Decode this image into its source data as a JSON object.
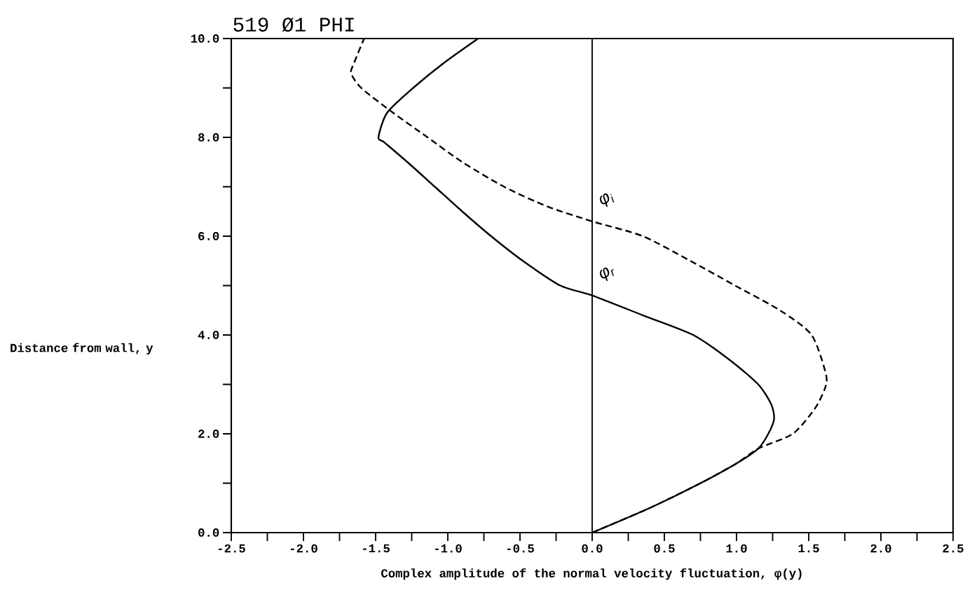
{
  "chart_data": {
    "type": "line",
    "title": "519 Ø1 PHI",
    "xlabel": "Complex amplitude of the normal velocity fluctuation, φ(y)",
    "ylabel": "Distance from wall, y",
    "xlim": [
      -2.5,
      2.5
    ],
    "ylim": [
      0,
      10
    ],
    "xticks": [
      {
        "value": -2.5,
        "label": "-2.5"
      },
      {
        "value": -2.25,
        "label": null
      },
      {
        "value": -2.0,
        "label": "-2.0"
      },
      {
        "value": -1.75,
        "label": null
      },
      {
        "value": -1.5,
        "label": "-1.5"
      },
      {
        "value": -1.25,
        "label": null
      },
      {
        "value": -1.0,
        "label": "-1.0"
      },
      {
        "value": -0.75,
        "label": null
      },
      {
        "value": -0.5,
        "label": "-0.5"
      },
      {
        "value": -0.25,
        "label": null
      },
      {
        "value": 0,
        "label": "0.0"
      },
      {
        "value": 0.25,
        "label": null
      },
      {
        "value": 0.5,
        "label": "0.5"
      },
      {
        "value": 0.75,
        "label": null
      },
      {
        "value": 1.0,
        "label": "1.0"
      },
      {
        "value": 1.25,
        "label": null
      },
      {
        "value": 1.5,
        "label": "1.5"
      },
      {
        "value": 1.75,
        "label": null
      },
      {
        "value": 2.0,
        "label": "2.0"
      },
      {
        "value": 2.25,
        "label": null
      },
      {
        "value": 2.5,
        "label": "2.5"
      }
    ],
    "yticks": [
      {
        "value": 0,
        "label": "0.0"
      },
      {
        "value": 1,
        "label": null
      },
      {
        "value": 2,
        "label": "2.0"
      },
      {
        "value": 3,
        "label": null
      },
      {
        "value": 4,
        "label": "4.0"
      },
      {
        "value": 5,
        "label": null
      },
      {
        "value": 6,
        "label": "6.0"
      },
      {
        "value": 7,
        "label": null
      },
      {
        "value": 8,
        "label": "8.0"
      },
      {
        "value": 9,
        "label": null
      },
      {
        "value": 10,
        "label": "10.0"
      }
    ],
    "ref_lines": [
      {
        "axis": "x",
        "value": 0,
        "color": "#000000"
      }
    ],
    "series": [
      {
        "name": "φ$_{r}$",
        "color": "#000000",
        "line_style": "solid",
        "x": [
          0,
          0.4,
          0.75,
          1.0,
          1.15,
          1.22,
          1.26,
          1.24,
          1.15,
          0.95,
          0.7,
          0.35,
          0,
          -0.22,
          -0.48,
          -0.7,
          -0.9,
          -1.09,
          -1.28,
          -1.44,
          -1.48,
          -1.42,
          -1.24,
          -1.03,
          -0.79
        ],
        "values": [
          0,
          0.5,
          1.0,
          1.4,
          1.7,
          2.0,
          2.3,
          2.6,
          3.0,
          3.5,
          4.0,
          4.4,
          4.8,
          5.0,
          5.5,
          6.0,
          6.5,
          7.0,
          7.5,
          7.9,
          8.0,
          8.5,
          9.0,
          9.5,
          10.0
        ]
      },
      {
        "name": "φ$_{i}$",
        "color": "#000000",
        "line_style": "dashed",
        "x": [
          0,
          0.4,
          0.75,
          1.0,
          1.15,
          1.39,
          1.54,
          1.61,
          1.62,
          1.52,
          1.3,
          0.99,
          0.68,
          0.35,
          0,
          -0.31,
          -0.61,
          -0.9,
          -1.14,
          -1.38,
          -1.6,
          -1.67,
          -1.65,
          -1.58
        ],
        "values": [
          0,
          0.5,
          1.0,
          1.4,
          1.7,
          2.0,
          2.5,
          2.9,
          3.2,
          4.0,
          4.5,
          5.0,
          5.5,
          6.0,
          6.3,
          6.6,
          7.0,
          7.5,
          8.0,
          8.5,
          9.0,
          9.3,
          9.5,
          10.0
        ]
      }
    ]
  }
}
